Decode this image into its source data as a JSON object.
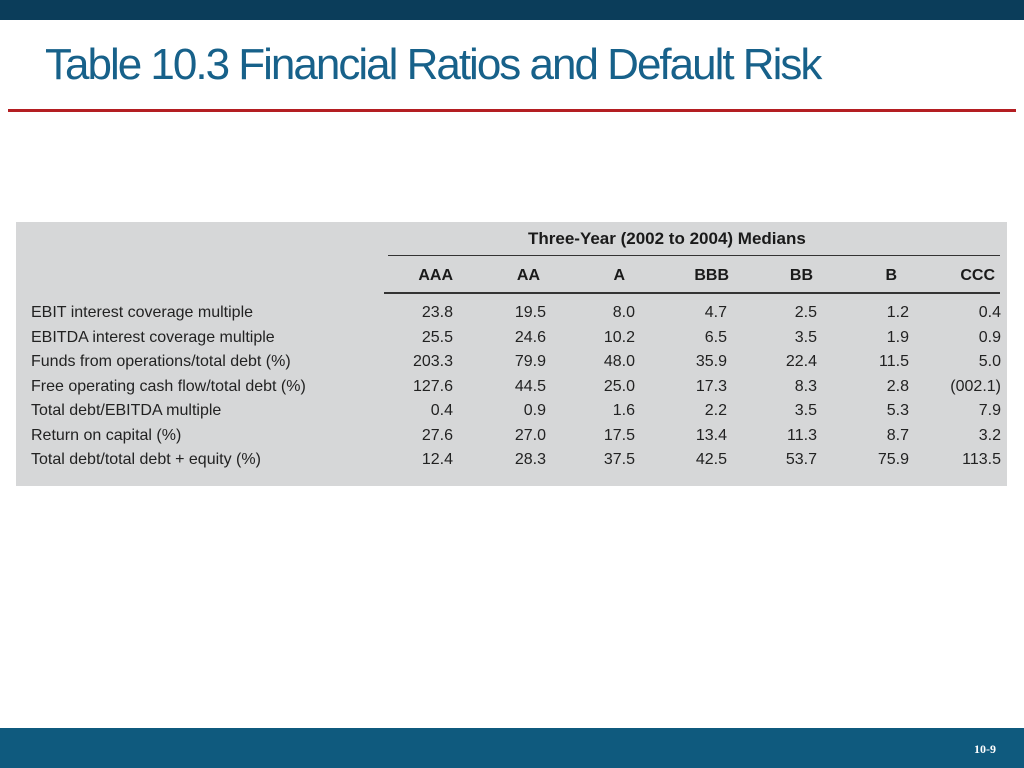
{
  "slide": {
    "title": "Table 10.3 Financial Ratios and Default Risk",
    "page_number": "10-9"
  },
  "table": {
    "group_header": "Three-Year (2002 to 2004) Medians",
    "columns": [
      "AAA",
      "AA",
      "A",
      "BBB",
      "BB",
      "B",
      "CCC"
    ],
    "rows": [
      {
        "label": "EBIT interest coverage multiple",
        "values": [
          "23.8",
          "19.5",
          "8.0",
          "4.7",
          "2.5",
          "1.2",
          "0.4"
        ]
      },
      {
        "label": "EBITDA interest coverage multiple",
        "values": [
          "25.5",
          "24.6",
          "10.2",
          "6.5",
          "3.5",
          "1.9",
          "0.9"
        ]
      },
      {
        "label": "Funds from operations/total debt (%)",
        "values": [
          "203.3",
          "79.9",
          "48.0",
          "35.9",
          "22.4",
          "11.5",
          "5.0"
        ]
      },
      {
        "label": "Free operating cash flow/total debt (%)",
        "values": [
          "127.6",
          "44.5",
          "25.0",
          "17.3",
          "8.3",
          "2.8",
          "(002.1)"
        ]
      },
      {
        "label": "Total debt/EBITDA multiple",
        "values": [
          "0.4",
          "0.9",
          "1.6",
          "2.2",
          "3.5",
          "5.3",
          "7.9"
        ]
      },
      {
        "label": "Return on capital (%)",
        "values": [
          "27.6",
          "27.0",
          "17.5",
          "13.4",
          "11.3",
          "8.7",
          "3.2"
        ]
      },
      {
        "label": "Total debt/total debt + equity (%)",
        "values": [
          "12.4",
          "28.3",
          "37.5",
          "42.5",
          "53.7",
          "75.9",
          "113.5"
        ]
      }
    ]
  },
  "colors": {
    "title": "#17618a",
    "top_bar": "#0b3d5a",
    "bottom_bar": "#0f5a7e",
    "accent_rule": "#b41e22",
    "table_background": "#d6d7d8"
  }
}
